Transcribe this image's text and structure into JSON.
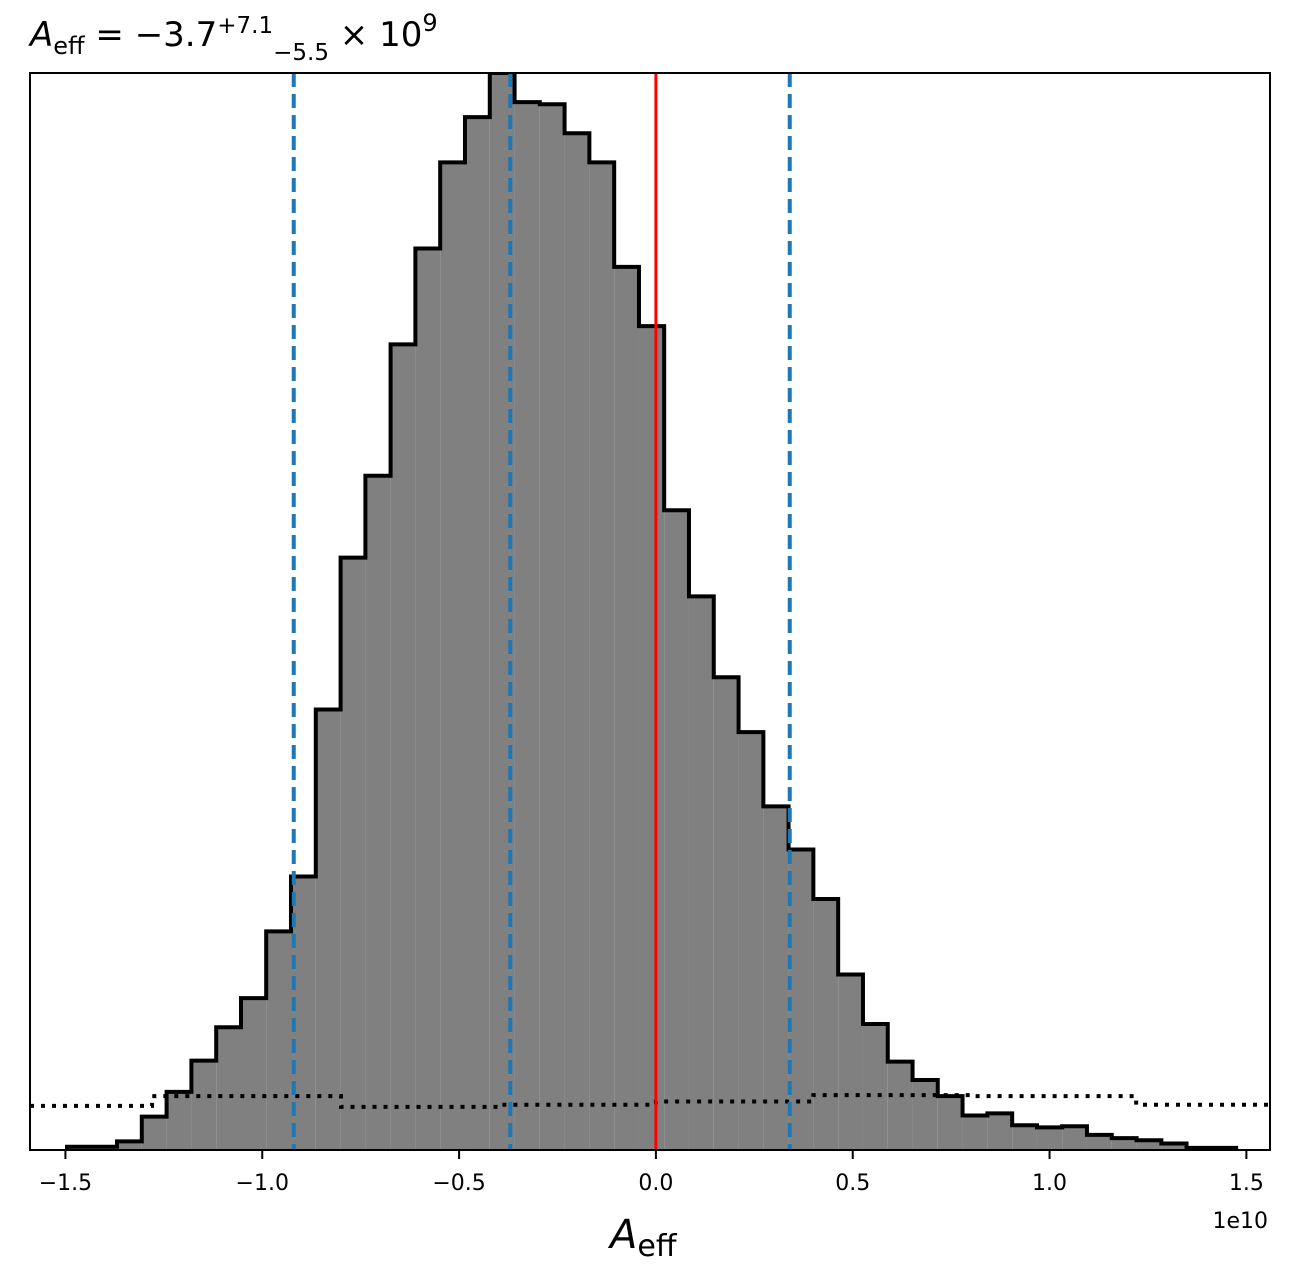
{
  "chart_data": {
    "type": "histogram",
    "title": {
      "symbol": "A",
      "symbol_sub": "eff",
      "equals": " = ",
      "median": "−3.7",
      "upper": "+7.1",
      "lower": "−5.5",
      "times": " × 10",
      "exponent": "9"
    },
    "xlabel": {
      "symbol": "A",
      "sub": "eff"
    },
    "offset_text": "1e10",
    "xlim": [
      -1.59,
      1.56
    ],
    "ylim": [
      0,
      1.0
    ],
    "x_unit_scale": 10000000000.0,
    "xticks": [
      -1.5,
      -1.0,
      -0.5,
      0.0,
      0.5,
      1.0,
      1.5
    ],
    "xtick_labels": [
      "−1.5",
      "−1.0",
      "−0.5",
      "0.0",
      "0.5",
      "1.0",
      "1.5"
    ],
    "yticks": [],
    "grid": false,
    "legend": "none",
    "histogram": {
      "fill": "#808080",
      "edge": "#000000",
      "bin_edges": [
        -1.496,
        -1.433,
        -1.369,
        -1.306,
        -1.243,
        -1.18,
        -1.117,
        -1.054,
        -0.99,
        -0.927,
        -0.864,
        -0.801,
        -0.738,
        -0.674,
        -0.611,
        -0.548,
        -0.485,
        -0.422,
        -0.359,
        -0.295,
        -0.232,
        -0.169,
        -0.106,
        -0.043,
        0.021,
        0.084,
        0.147,
        0.21,
        0.273,
        0.337,
        0.4,
        0.463,
        0.526,
        0.589,
        0.652,
        0.716,
        0.779,
        0.842,
        0.905,
        0.968,
        1.032,
        1.095,
        1.158,
        1.221,
        1.284,
        1.348,
        1.411,
        1.474
      ],
      "counts": [
        0.003,
        0.003,
        0.008,
        0.031,
        0.054,
        0.083,
        0.114,
        0.141,
        0.203,
        0.254,
        0.409,
        0.55,
        0.626,
        0.748,
        0.837,
        0.917,
        0.959,
        1.0,
        0.973,
        0.971,
        0.944,
        0.917,
        0.82,
        0.765,
        0.594,
        0.514,
        0.439,
        0.388,
        0.319,
        0.279,
        0.233,
        0.163,
        0.117,
        0.082,
        0.065,
        0.05,
        0.032,
        0.034,
        0.023,
        0.021,
        0.022,
        0.014,
        0.011,
        0.009,
        0.006,
        0.002,
        0.002
      ]
    },
    "prior": {
      "style": "dotted",
      "color": "#000000",
      "bin_edges": [
        -1.59,
        -1.28,
        -1.22,
        -0.8,
        -0.4,
        0.0,
        0.4,
        0.8,
        1.22,
        1.56
      ],
      "values": [
        0.041,
        0.05,
        0.05,
        0.04,
        0.042,
        0.045,
        0.051,
        0.05,
        0.042
      ]
    },
    "quantile_lines": {
      "color": "#1f77b4",
      "style": "dashed",
      "x": [
        -0.92,
        -0.37,
        0.34
      ]
    },
    "truth_line": {
      "color": "#ff0000",
      "x": 0.0
    }
  }
}
